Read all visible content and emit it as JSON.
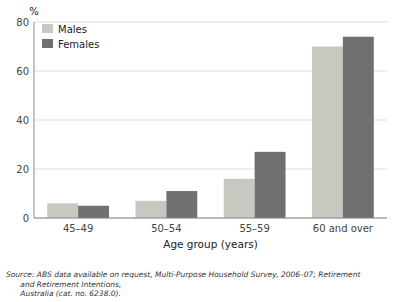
{
  "chart_data": {
    "type": "bar",
    "categories": [
      "45–49",
      "50–54",
      "55–59",
      "60 and over"
    ],
    "series": [
      {
        "name": "Males",
        "color": "#c8c8c0",
        "values": [
          6.0,
          7.0,
          16.0,
          70.0
        ]
      },
      {
        "name": "Females",
        "color": "#707070",
        "values": [
          5.0,
          11.0,
          27.0,
          74.0
        ]
      }
    ],
    "xlabel": "Age group (years)",
    "ylabel": "%",
    "ylim": [
      0,
      80
    ],
    "yticks": [
      0,
      20,
      40,
      60,
      80
    ],
    "grid": true,
    "legend": "upper left",
    "annotations": [
      "Source: ABS data available on request, Multi-Purpose Household Survey, 2006–07; Retirement\n      and Retirement Intentions,\n      Australia (cat. no. 6238.0)."
    ]
  }
}
